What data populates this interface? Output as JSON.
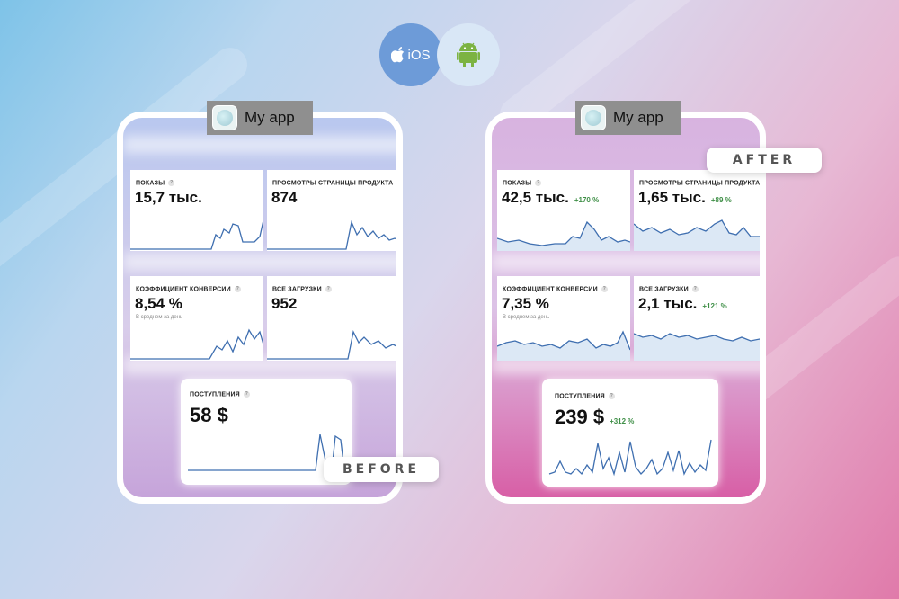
{
  "platforms": {
    "ios_label": "iOS",
    "android_label": "android"
  },
  "app": {
    "name": "My app"
  },
  "labels": {
    "before": "BEFORE",
    "after": "AFTER"
  },
  "before": {
    "impressions": {
      "label": "ПОКАЗЫ",
      "value": "15,7 тыс."
    },
    "page_views": {
      "label": "ПРОСМОТРЫ СТРАНИЦЫ ПРОДУКТА",
      "value": "874"
    },
    "conversion": {
      "label": "КОЭФФИЦИЕНТ КОНВЕРСИИ",
      "value": "8,54 %",
      "sub": "В среднем за день"
    },
    "downloads": {
      "label": "ВСЕ ЗАГРУЗКИ",
      "value": "952"
    },
    "revenue": {
      "label": "ПОСТУПЛЕНИЯ",
      "value": "58 $"
    }
  },
  "after": {
    "impressions": {
      "label": "ПОКАЗЫ",
      "value": "42,5 тыс.",
      "delta": "+170 %"
    },
    "page_views": {
      "label": "ПРОСМОТРЫ СТРАНИЦЫ ПРОДУКТА",
      "value": "1,65 тыс.",
      "delta": "+89 %"
    },
    "conversion": {
      "label": "КОЭФФИЦИЕНТ КОНВЕРСИИ",
      "value": "7,35 %",
      "sub": "В среднем за день"
    },
    "downloads": {
      "label": "ВСЕ ЗАГРУЗКИ",
      "value": "2,1 тыс.",
      "delta": "+121 %"
    },
    "revenue": {
      "label": "ПОСТУПЛЕНИЯ",
      "value": "239 $",
      "delta": "+312 %"
    }
  },
  "colors": {
    "line": "#3f6fb0",
    "fill": "#cfe1f3",
    "positive": "#3f8f47"
  }
}
